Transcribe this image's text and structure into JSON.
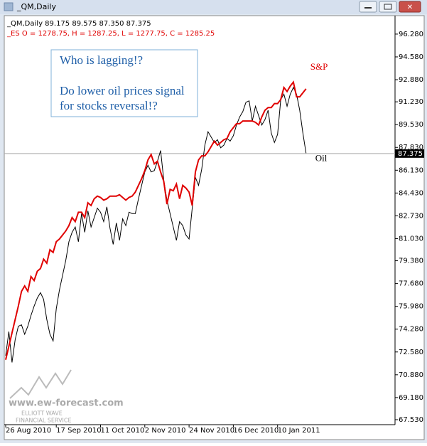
{
  "window_title": "_QM,Daily",
  "chart_data": {
    "type": "line",
    "header": "_QM,Daily  89.175 89.575 87.350 87.375",
    "subheader": "_ES O = 1278.75, H = 1287.25, L = 1277.75, C = 1285.25",
    "annotation": [
      "Who is lagging!?",
      "Do lower oil prices signal",
      "for stocks reversal!?"
    ],
    "categories": [
      "26 Aug 2010",
      null,
      null,
      null,
      null,
      null,
      null,
      null,
      null,
      null,
      null,
      null,
      null,
      null,
      null,
      null,
      "17 Sep 2010",
      null,
      null,
      null,
      null,
      null,
      null,
      null,
      null,
      null,
      null,
      null,
      null,
      null,
      "11 Oct 2010",
      null,
      null,
      null,
      null,
      null,
      null,
      null,
      null,
      null,
      null,
      null,
      null,
      null,
      "2 Nov 2010",
      null,
      null,
      null,
      null,
      null,
      null,
      null,
      null,
      null,
      null,
      null,
      null,
      null,
      "24 Nov 2010",
      null,
      null,
      null,
      null,
      null,
      null,
      null,
      null,
      null,
      null,
      null,
      null,
      null,
      "16 Dec 2010",
      null,
      null,
      null,
      null,
      null,
      null,
      null,
      null,
      null,
      null,
      null,
      null,
      null,
      "10 Jan 2011",
      null,
      null,
      null,
      null,
      null,
      null,
      null,
      null,
      null
    ],
    "series": [
      {
        "name": "Oil",
        "color": "#000000",
        "values": [
          72.3,
          74.1,
          71.8,
          73.5,
          74.5,
          74.6,
          73.9,
          74.5,
          75.3,
          76.0,
          76.6,
          77.0,
          76.5,
          75.0,
          73.9,
          73.4,
          75.8,
          77.2,
          78.3,
          79.4,
          80.8,
          81.5,
          81.9,
          80.8,
          82.9,
          81.5,
          83.1,
          81.9,
          82.6,
          83.3,
          83.0,
          82.3,
          83.4,
          81.8,
          80.6,
          82.2,
          80.9,
          82.5,
          82.0,
          83.0,
          82.9,
          82.9,
          84.0,
          85.0,
          86.0,
          86.5,
          86.0,
          86.1,
          86.8,
          87.6,
          85.4,
          83.9,
          82.9,
          81.9,
          80.9,
          82.3,
          82.0,
          81.3,
          81.0,
          83.3,
          85.6,
          85.0,
          86.2,
          88.0,
          89.0,
          88.6,
          88.2,
          88.4,
          87.8,
          88.0,
          88.5,
          88.3,
          88.7,
          89.5,
          90.1,
          90.5,
          91.2,
          91.3,
          89.8,
          90.9,
          90.2,
          89.5,
          89.9,
          90.6,
          88.9,
          88.2,
          88.8,
          91.4,
          91.8,
          90.9,
          91.8,
          92.3,
          91.8,
          90.6,
          88.9,
          87.4
        ]
      },
      {
        "name": "S&P",
        "color": "#e00000",
        "values": [
          72.0,
          73.0,
          74.0,
          75.0,
          76.0,
          77.1,
          77.5,
          77.1,
          78.2,
          77.9,
          78.6,
          78.8,
          79.5,
          79.2,
          80.2,
          80.0,
          80.8,
          81.0,
          81.3,
          81.6,
          82.0,
          82.6,
          82.3,
          83.0,
          83.0,
          82.6,
          83.7,
          83.5,
          84.0,
          84.2,
          84.1,
          83.9,
          84.0,
          84.2,
          84.2,
          84.2,
          84.3,
          84.1,
          83.9,
          84.1,
          84.2,
          84.5,
          85.0,
          85.5,
          86.1,
          86.9,
          87.3,
          86.6,
          86.8,
          86.0,
          85.3,
          83.6,
          84.7,
          84.6,
          85.1,
          84.0,
          85.0,
          84.8,
          84.5,
          83.5,
          86.0,
          86.9,
          87.2,
          87.2,
          87.5,
          87.9,
          88.3,
          88.0,
          88.2,
          88.4,
          88.5,
          89.0,
          89.3,
          89.6,
          89.6,
          89.8,
          89.8,
          89.8,
          89.8,
          89.7,
          89.5,
          90.1,
          90.6,
          90.8,
          90.8,
          91.1,
          91.1,
          91.4,
          92.3,
          92.0,
          92.4,
          92.7,
          91.6,
          91.6,
          91.9,
          92.2
        ]
      }
    ],
    "current_price": {
      "value": 87.375,
      "label": "87.375"
    },
    "ylim": [
      67.0,
      96.7
    ],
    "yticks": [
      {
        "value": 96.28,
        "label": "96.280"
      },
      {
        "value": 94.58,
        "label": "94.580"
      },
      {
        "value": 92.88,
        "label": "92.880"
      },
      {
        "value": 91.23,
        "label": "91.230"
      },
      {
        "value": 89.53,
        "label": "89.530"
      },
      {
        "value": 87.83,
        "label": "87.830"
      },
      {
        "value": 86.13,
        "label": "86.130"
      },
      {
        "value": 84.43,
        "label": "84.430"
      },
      {
        "value": 82.73,
        "label": "82.730"
      },
      {
        "value": 81.03,
        "label": "81.030"
      },
      {
        "value": 79.38,
        "label": "79.380"
      },
      {
        "value": 77.68,
        "label": "77.680"
      },
      {
        "value": 75.98,
        "label": "75.980"
      },
      {
        "value": 74.28,
        "label": "74.280"
      },
      {
        "value": 72.58,
        "label": "72.580"
      },
      {
        "value": 70.88,
        "label": "70.880"
      },
      {
        "value": 69.18,
        "label": "69.180"
      },
      {
        "value": 67.53,
        "label": "67.530"
      }
    ],
    "grid": false,
    "watermark": [
      "www.ew-forecast.com",
      "ELLIOTT WAVE",
      "FINANCIAL SERVICE"
    ]
  }
}
